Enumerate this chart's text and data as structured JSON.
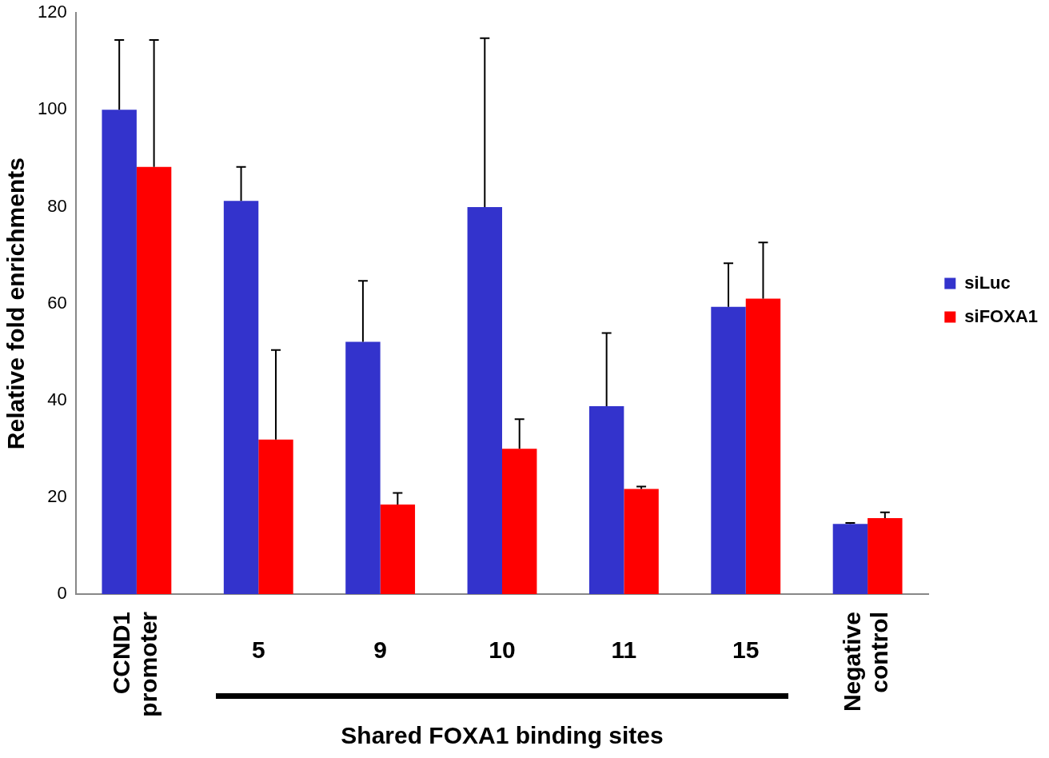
{
  "chart_data": {
    "type": "bar",
    "ylabel": "Relative fold enrichments",
    "categories": [
      "CCND1 promoter",
      "5",
      "9",
      "10",
      "11",
      "15",
      "Negative control"
    ],
    "series": [
      {
        "name": "siLuc",
        "color": "#3333cc",
        "values": [
          100,
          81.2,
          52.1,
          79.9,
          38.8,
          59.3,
          14.5
        ],
        "errors": [
          [
            100,
            114.4
          ],
          [
            81.2,
            88.2
          ],
          [
            52.1,
            64.7
          ],
          [
            79.9,
            114.8
          ],
          [
            38.8,
            53.9
          ],
          [
            59.3,
            68.3
          ],
          [
            14.5,
            14.7
          ]
        ]
      },
      {
        "name": "siFOXA1",
        "color": "#ff0000",
        "values": [
          88.2,
          31.9,
          18.5,
          30,
          21.7,
          61,
          15.7
        ],
        "errors": [
          [
            88.2,
            114.4
          ],
          [
            31.9,
            50.4
          ],
          [
            18.5,
            20.9
          ],
          [
            30,
            36.1
          ],
          [
            21.7,
            22.2
          ],
          [
            61,
            72.6
          ],
          [
            15.7,
            16.9
          ]
        ]
      }
    ],
    "ylim": [
      0,
      120
    ],
    "yticks": [
      0,
      20,
      40,
      60,
      80,
      100,
      120
    ],
    "grid": false,
    "legend": "right",
    "annotations": [
      "Shared FOXA1 binding sites"
    ]
  }
}
